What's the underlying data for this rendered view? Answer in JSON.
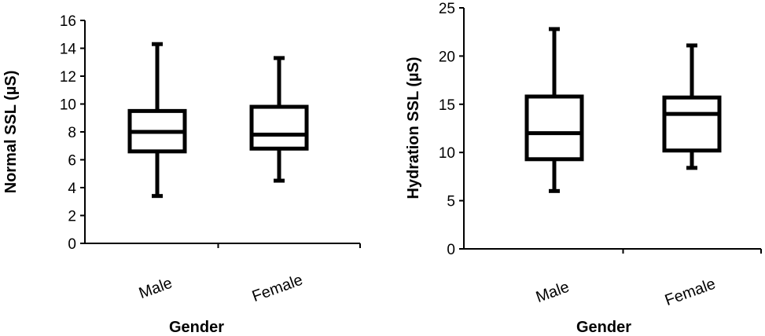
{
  "chart_data": [
    {
      "type": "boxplot",
      "xlabel": "Gender",
      "ylabel": "Normal SSL (µS)",
      "ylim": [
        0,
        16
      ],
      "yticks": [
        0,
        2,
        4,
        6,
        8,
        10,
        12,
        14,
        16
      ],
      "categories": [
        "Male",
        "Female"
      ],
      "boxes": [
        {
          "category": "Male",
          "min": 3.4,
          "q1": 6.6,
          "median": 8.0,
          "q3": 9.5,
          "max": 14.3
        },
        {
          "category": "Female",
          "min": 4.5,
          "q1": 6.8,
          "median": 7.8,
          "q3": 9.8,
          "max": 13.3
        }
      ]
    },
    {
      "type": "boxplot",
      "xlabel": "Gender",
      "ylabel": "Hydration SSL (µS)",
      "ylim": [
        0,
        25
      ],
      "yticks": [
        0,
        5,
        10,
        15,
        20,
        25
      ],
      "categories": [
        "Male",
        "Female"
      ],
      "boxes": [
        {
          "category": "Male",
          "min": 6.0,
          "q1": 9.3,
          "median": 12.0,
          "q3": 15.8,
          "max": 22.8
        },
        {
          "category": "Female",
          "min": 8.4,
          "q1": 10.2,
          "median": 14.0,
          "q3": 15.7,
          "max": 21.1
        }
      ]
    }
  ],
  "colors": {
    "stroke": "#000000",
    "background": "#ffffff"
  }
}
